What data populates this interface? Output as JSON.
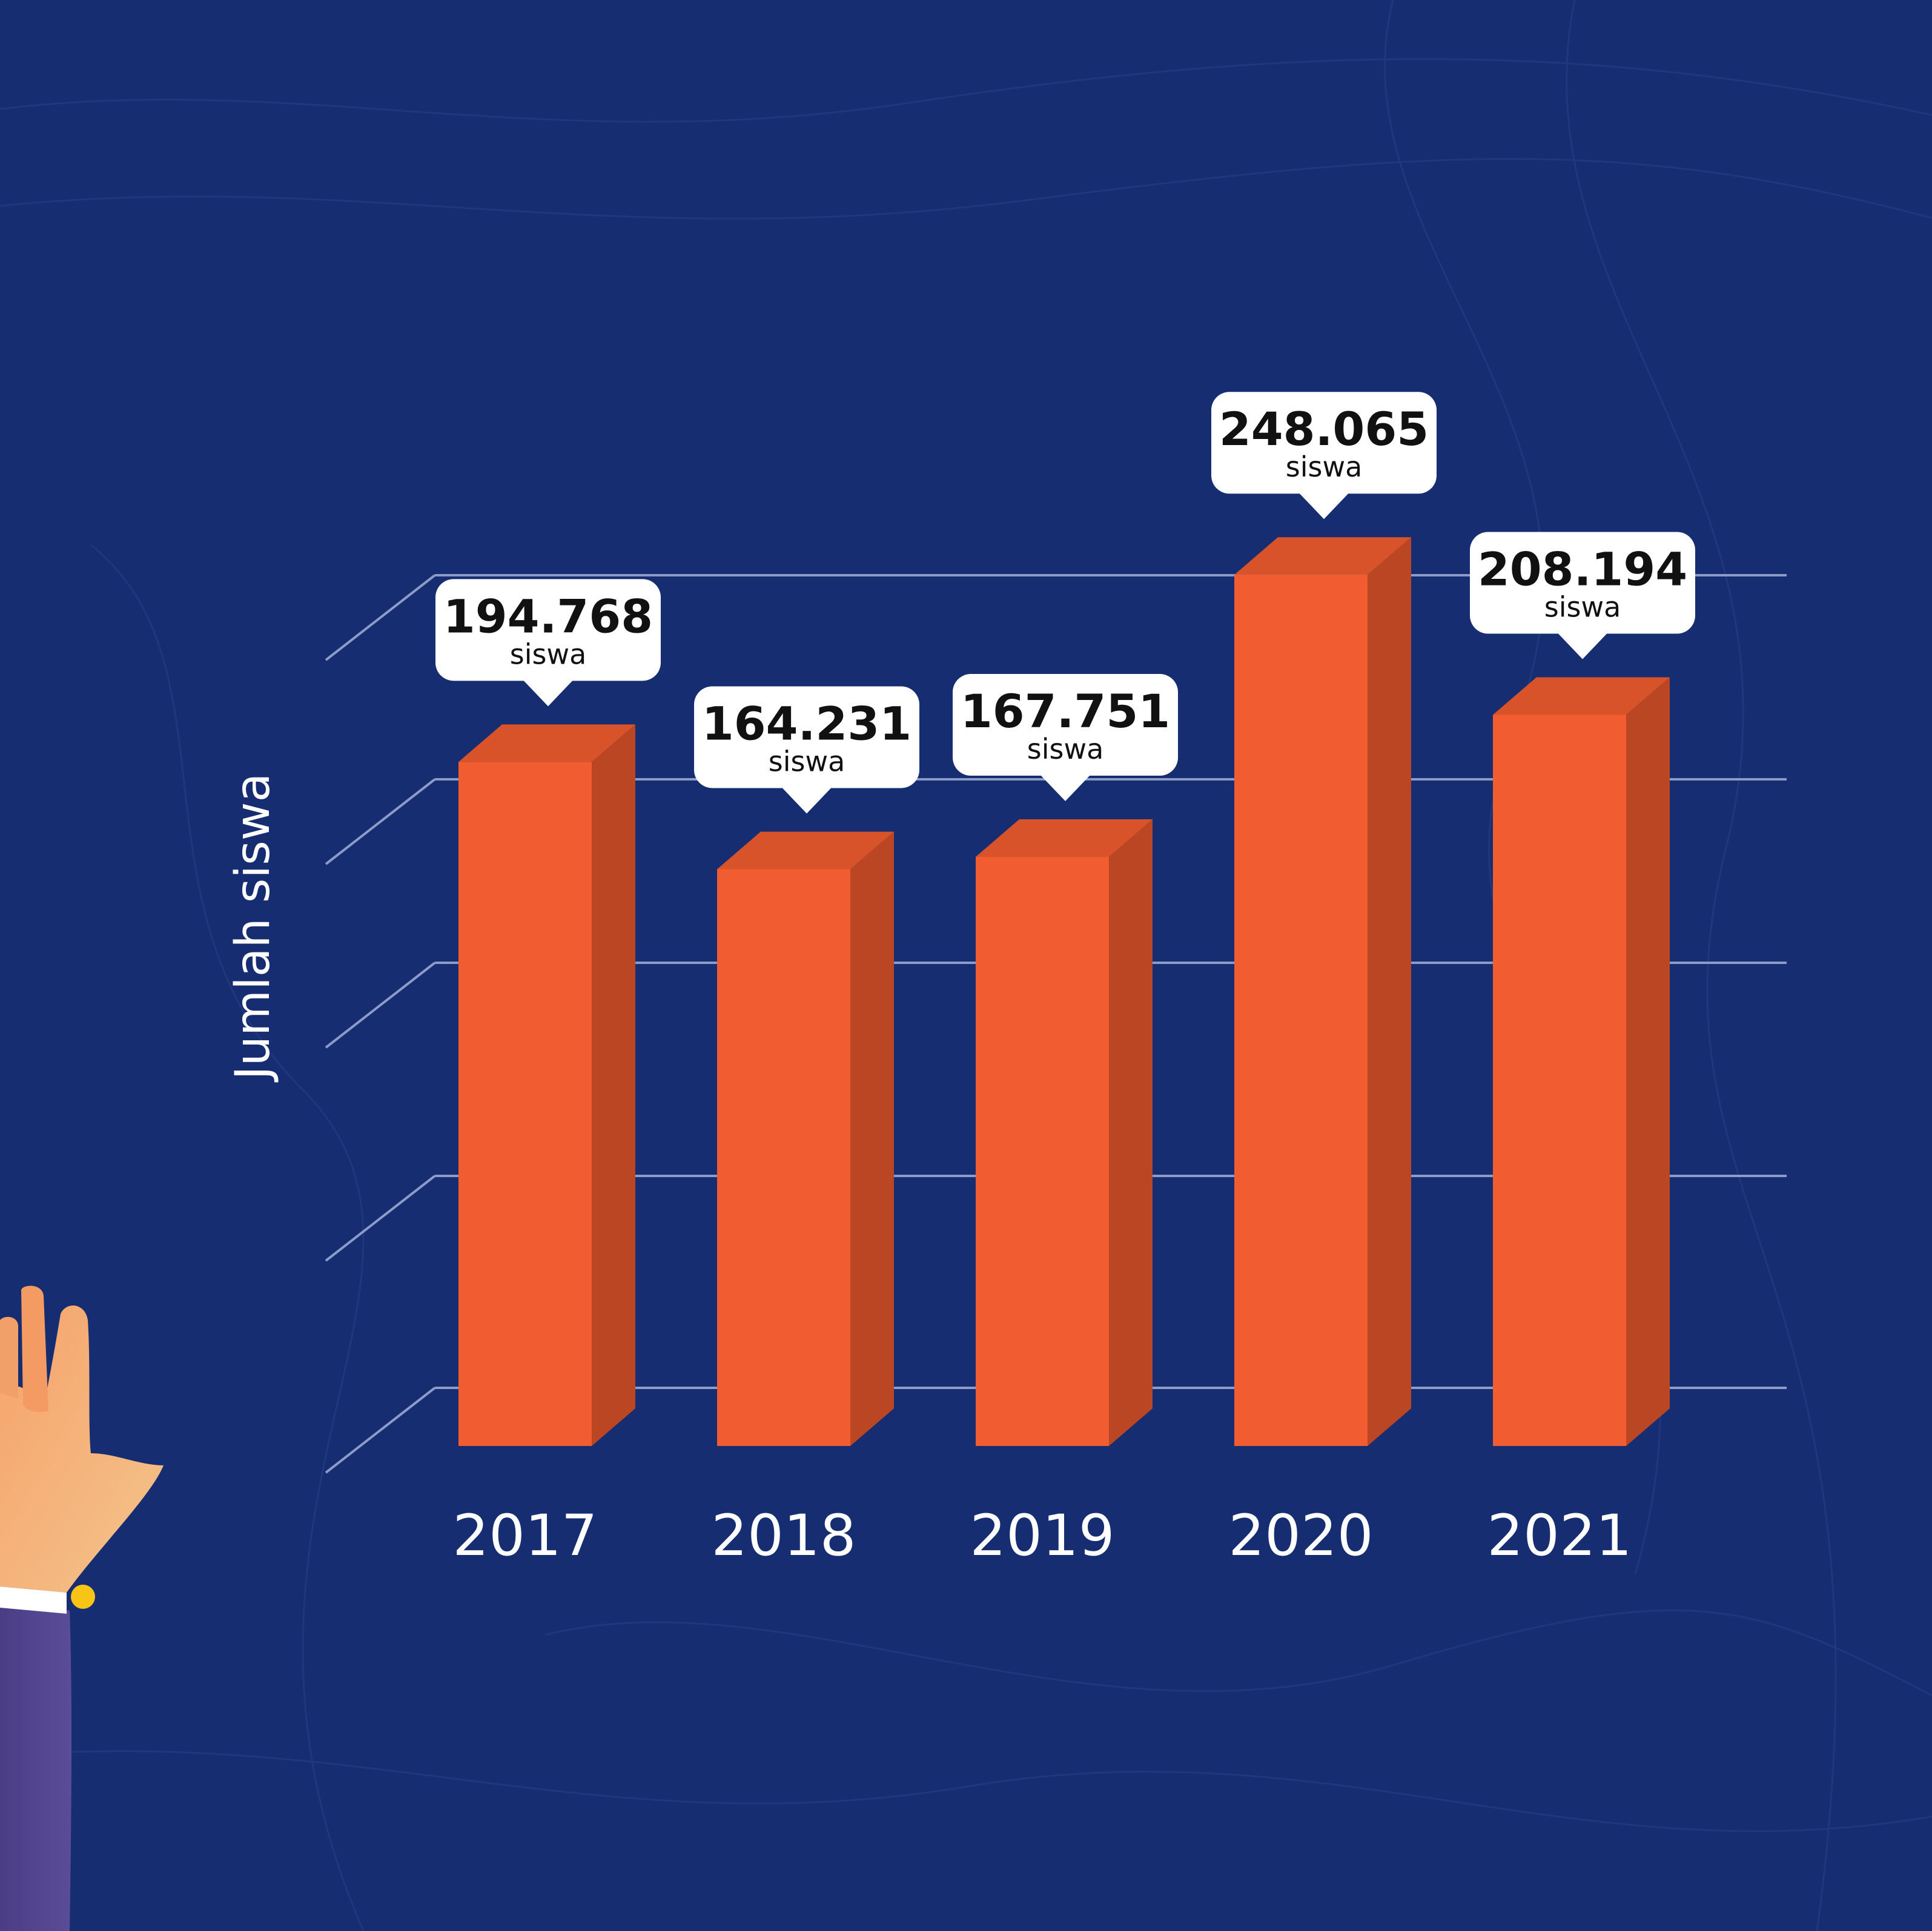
{
  "colors": {
    "background": "#162d72",
    "bar_front": "#f15d30",
    "bar_top": "#d9532a",
    "bar_side": "#bb4624",
    "gridline": "#8d9bc8",
    "label_box": "#ffffff",
    "label_text": "#111111",
    "axis_text": "#ffffff"
  },
  "chart_data": {
    "type": "bar",
    "categories": [
      "2017",
      "2018",
      "2019",
      "2020",
      "2021"
    ],
    "values": [
      194768,
      164231,
      167751,
      248065,
      208194
    ],
    "value_labels": [
      "194.768",
      "164.231",
      "167.751",
      "248.065",
      "208.194"
    ],
    "value_unit": "siswa",
    "title": "",
    "xlabel": "",
    "ylabel": "Jumlah siswa",
    "ylim": [
      0,
      250000
    ],
    "grid": true,
    "legend": "none",
    "style": "3d"
  },
  "decorations": {
    "illustration": "hand-raised-icon"
  }
}
